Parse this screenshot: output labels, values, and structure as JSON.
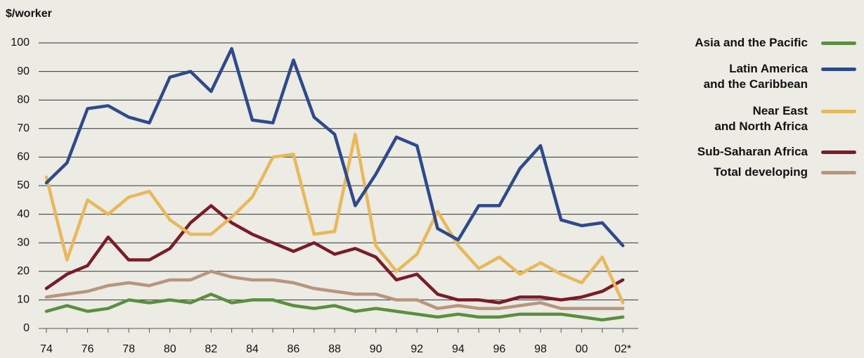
{
  "chart_data": {
    "type": "line",
    "y_label": "$/worker",
    "categories": [
      "74",
      null,
      "76",
      null,
      "78",
      null,
      "80",
      null,
      "82",
      null,
      "84",
      null,
      "86",
      null,
      "88",
      null,
      "90",
      null,
      "92",
      null,
      "94",
      null,
      "96",
      null,
      "98",
      null,
      "00",
      null,
      "02*"
    ],
    "ylim": [
      0,
      100
    ],
    "yticks": [
      0,
      10,
      20,
      30,
      40,
      50,
      60,
      70,
      80,
      90,
      100
    ],
    "grid": true,
    "series": [
      {
        "name": "Asia and the Pacific",
        "color": "#5a8f3e",
        "values": [
          6,
          8,
          6,
          7,
          10,
          9,
          10,
          9,
          12,
          9,
          10,
          10,
          8,
          7,
          8,
          6,
          7,
          6,
          5,
          4,
          5,
          4,
          4,
          5,
          5,
          5,
          4,
          3,
          4
        ]
      },
      {
        "name": "Latin America\nand the Caribbean",
        "color": "#2e4a8c",
        "values": [
          51,
          58,
          77,
          78,
          74,
          72,
          88,
          90,
          83,
          98,
          73,
          72,
          94,
          74,
          68,
          43,
          54,
          67,
          64,
          35,
          31,
          43,
          43,
          56,
          64,
          38,
          36,
          37,
          29
        ]
      },
      {
        "name": "Near East\nand North Africa",
        "color": "#e8b85a",
        "values": [
          53,
          24,
          45,
          40,
          46,
          48,
          38,
          33,
          33,
          39,
          46,
          60,
          61,
          33,
          34,
          68,
          29,
          20,
          26,
          41,
          29,
          21,
          25,
          19,
          23,
          19,
          16,
          25,
          9
        ]
      },
      {
        "name": "Sub-Saharan Africa",
        "color": "#7a1c28",
        "values": [
          14,
          19,
          22,
          32,
          24,
          24,
          28,
          37,
          43,
          37,
          33,
          30,
          27,
          30,
          26,
          28,
          25,
          17,
          19,
          12,
          10,
          10,
          9,
          11,
          11,
          10,
          11,
          13,
          17
        ]
      },
      {
        "name": "Total developing",
        "color": "#b8957e",
        "values": [
          11,
          12,
          13,
          15,
          16,
          15,
          17,
          17,
          20,
          18,
          17,
          17,
          16,
          14,
          13,
          12,
          12,
          10,
          10,
          7,
          8,
          7,
          7,
          8,
          9,
          7,
          7,
          7,
          7
        ]
      }
    ]
  }
}
